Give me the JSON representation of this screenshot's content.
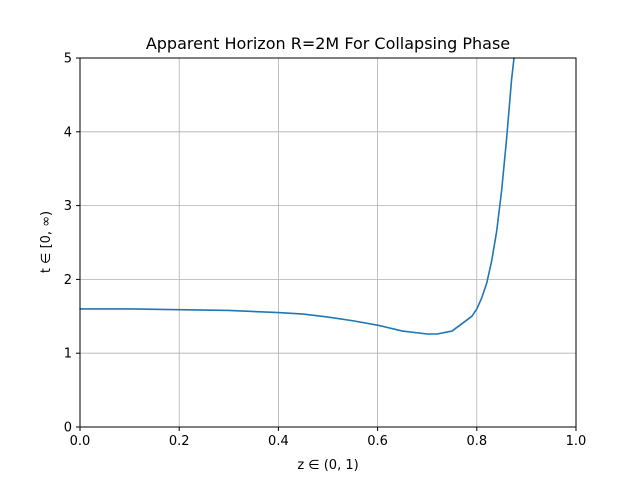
{
  "chart_data": {
    "type": "line",
    "title": "Apparent Horizon R=2M For Collapsing Phase",
    "xlabel": "z ∈ (0, 1)",
    "ylabel": "t ∈ [0, ∞)",
    "xlim": [
      0.0,
      1.0
    ],
    "ylim": [
      0,
      5
    ],
    "grid": true,
    "x_ticks": [
      "0.0",
      "0.2",
      "0.4",
      "0.6",
      "0.8",
      "1.0"
    ],
    "y_ticks": [
      "0",
      "1",
      "2",
      "3",
      "4",
      "5"
    ],
    "series": [
      {
        "color": "#1f77b4",
        "x": [
          0.0,
          0.1,
          0.2,
          0.3,
          0.4,
          0.45,
          0.5,
          0.55,
          0.6,
          0.65,
          0.7,
          0.72,
          0.75,
          0.77,
          0.79,
          0.8,
          0.81,
          0.82,
          0.83,
          0.84,
          0.85,
          0.86,
          0.87,
          0.875
        ],
        "y": [
          1.6,
          1.6,
          1.59,
          1.58,
          1.55,
          1.53,
          1.49,
          1.44,
          1.38,
          1.3,
          1.26,
          1.26,
          1.3,
          1.4,
          1.5,
          1.6,
          1.75,
          1.95,
          2.25,
          2.65,
          3.2,
          3.9,
          4.7,
          5.0
        ]
      }
    ]
  }
}
